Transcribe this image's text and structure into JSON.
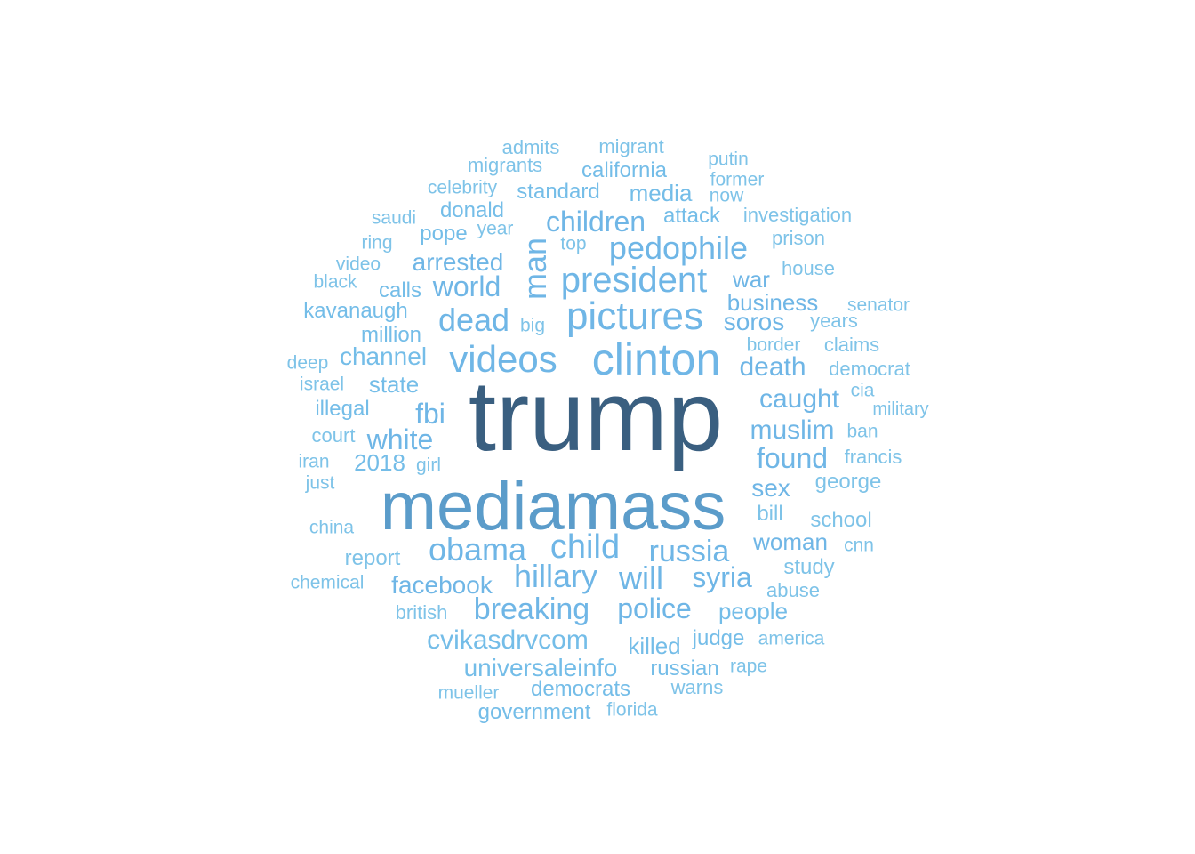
{
  "words": {
    "trump": "trump",
    "mediamass": "mediamass",
    "clinton": "clinton",
    "pictures": "pictures",
    "videos": "videos",
    "president": "president",
    "pedophile": "pedophile",
    "man": "man",
    "dead": "dead",
    "world": "world",
    "children": "children",
    "arrested": "arrested",
    "child": "child",
    "obama": "obama",
    "hillary": "hillary",
    "will": "will",
    "russia": "russia",
    "breaking": "breaking",
    "police": "police",
    "syria": "syria",
    "white": "white",
    "fbi": "fbi",
    "found": "found",
    "muslim": "muslim",
    "caught": "caught",
    "death": "death",
    "soros": "soros",
    "business": "business",
    "war": "war",
    "sex": "sex",
    "woman": "woman",
    "facebook": "facebook",
    "cvikasdrvcom": "cvikasdrvcom",
    "universaleinfo": "universaleinfo",
    "killed": "killed",
    "people": "people",
    "democrats": "democrats",
    "government": "government",
    "russian": "russian",
    "judge": "judge",
    "channel": "channel",
    "state": "state",
    "illegal": "illegal",
    "2018": "2018",
    "kavanaugh": "kavanaugh",
    "million": "million",
    "calls": "calls",
    "media": "media",
    "attack": "attack",
    "standard": "standard",
    "california": "california",
    "donald": "donald",
    "pope": "pope",
    "migrants": "migrants",
    "migrant": "migrant",
    "admits": "admits",
    "celebrity": "celebrity",
    "putin": "putin",
    "former": "former",
    "now": "now",
    "investigation": "investigation",
    "prison": "prison",
    "house": "house",
    "senator": "senator",
    "years": "years",
    "claims": "claims",
    "border": "border",
    "democrat": "democrat",
    "cia": "cia",
    "military": "military",
    "ban": "ban",
    "francis": "francis",
    "george": "george",
    "school": "school",
    "cnn": "cnn",
    "study": "study",
    "abuse": "abuse",
    "america": "america",
    "rape": "rape",
    "warns": "warns",
    "florida": "florida",
    "mueller": "mueller",
    "british": "british",
    "chemical": "chemical",
    "report": "report",
    "china": "china",
    "just": "just",
    "iran": "iran",
    "girl": "girl",
    "court": "court",
    "israel": "israel",
    "deep": "deep",
    "black": "black",
    "video": "video",
    "ring": "ring",
    "saudi": "saudi",
    "year": "year",
    "top": "top",
    "big": "big",
    "bill": "bill"
  }
}
